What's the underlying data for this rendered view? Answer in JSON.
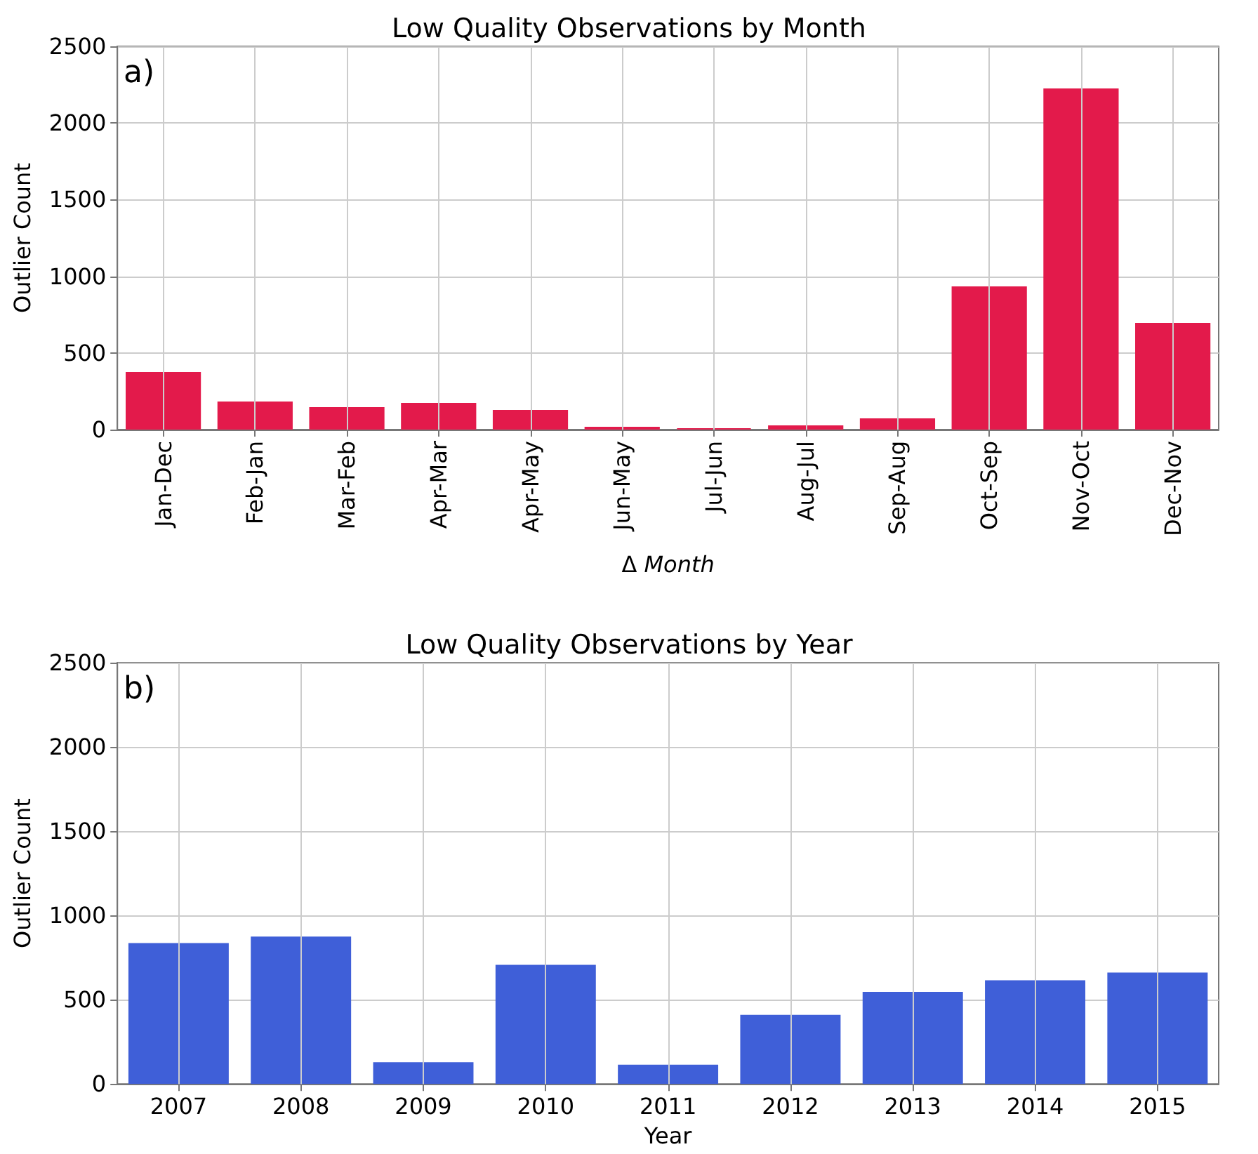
{
  "chart_data": [
    {
      "type": "bar",
      "title": "Low Quality Observations by Month",
      "xlabel": "Δ Month",
      "ylabel": "Outlier Count",
      "annotations": [
        "a)"
      ],
      "categories": [
        "Jan-Dec",
        "Feb-Jan",
        "Mar-Feb",
        "Apr-Mar",
        "Apr-May",
        "Jun-May",
        "Jul-Jun",
        "Aug-Jul",
        "Sep-Aug",
        "Oct-Sep",
        "Nov-Oct",
        "Dec-Nov"
      ],
      "values": [
        375,
        183,
        147,
        174,
        128,
        18,
        9,
        27,
        73,
        934,
        2225,
        696
      ],
      "color": "#e31a4b",
      "ylim": [
        0,
        2500
      ],
      "yticks": [
        0,
        500,
        1000,
        1500,
        2000,
        2500
      ],
      "grid": true
    },
    {
      "type": "bar",
      "title": "Low Quality Observations by Year",
      "xlabel": "Year",
      "ylabel": "Outlier Count",
      "annotations": [
        "b)"
      ],
      "categories": [
        "2007",
        "2008",
        "2009",
        "2010",
        "2011",
        "2012",
        "2013",
        "2014",
        "2015"
      ],
      "values": [
        836,
        874,
        129,
        707,
        114,
        410,
        547,
        615,
        661
      ],
      "color": "#3f5fd8",
      "ylim": [
        0,
        2500
      ],
      "yticks": [
        0,
        500,
        1000,
        1500,
        2000,
        2500
      ],
      "grid": true
    }
  ]
}
